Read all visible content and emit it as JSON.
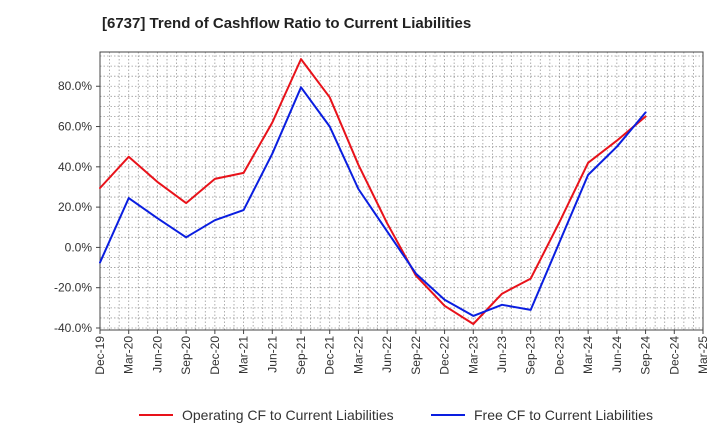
{
  "chart_data": {
    "type": "line",
    "title": "[6737]  Trend of Cashflow Ratio to Current Liabilities",
    "xlabel": "",
    "ylabel": "",
    "categories": [
      "Dec-19",
      "Mar-20",
      "Jun-20",
      "Sep-20",
      "Dec-20",
      "Mar-21",
      "Jun-21",
      "Sep-21",
      "Dec-21",
      "Mar-22",
      "Jun-22",
      "Sep-22",
      "Dec-22",
      "Mar-23",
      "Jun-23",
      "Sep-23",
      "Dec-23",
      "Mar-24",
      "Jun-24",
      "Sep-24",
      "Dec-24",
      "Mar-25"
    ],
    "ylim": [
      -41,
      97
    ],
    "yticks": [
      -40,
      -20,
      0,
      20,
      40,
      60,
      80
    ],
    "ytick_labels": [
      "-40.0%",
      "-20.0%",
      "0.0%",
      "20.0%",
      "40.0%",
      "60.0%",
      "80.0%"
    ],
    "grid": true,
    "legend_position": "bottom",
    "series": [
      {
        "name": "Operating CF to Current Liabilities",
        "color": "#e8121a",
        "values": [
          29.5,
          45,
          32.5,
          22,
          34,
          37,
          62,
          93.5,
          74.5,
          41,
          12,
          -14,
          -29,
          -38,
          -23,
          -15.5,
          12.5,
          42,
          53,
          65,
          null,
          null
        ]
      },
      {
        "name": "Free CF to Current Liabilities",
        "color": "#0a1ee0",
        "values": [
          -7.5,
          24.5,
          14.5,
          5,
          13.5,
          18.5,
          46.5,
          79.5,
          60,
          29,
          8,
          -13,
          -26,
          -34,
          -28.5,
          -31,
          2.5,
          36,
          50,
          67,
          null,
          null
        ]
      }
    ]
  }
}
